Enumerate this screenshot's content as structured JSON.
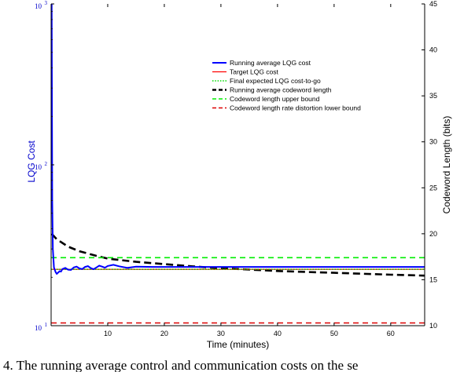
{
  "chart_data": {
    "type": "line",
    "xlabel": "Time (minutes)",
    "ylabel_left": "LQG Cost",
    "ylabel_right": "Codeword Length (bits)",
    "xlim": [
      0,
      66
    ],
    "ylim_left": [
      10,
      1000
    ],
    "yscale_left": "log",
    "ylim_right": [
      10,
      45
    ],
    "x_ticks": [
      10,
      20,
      30,
      40,
      50,
      60
    ],
    "y_left_ticks": [
      {
        "value": 10,
        "base": "10",
        "exp": "1"
      },
      {
        "value": 100,
        "base": "10",
        "exp": "2"
      },
      {
        "value": 1000,
        "base": "10",
        "exp": "3"
      }
    ],
    "y_right_ticks": [
      10,
      15,
      20,
      25,
      30,
      35,
      40,
      45
    ],
    "grid": false,
    "legend_position": "top-right",
    "colors": {
      "avg_lqg": "#0000ff",
      "target_lqg": "#ff0000",
      "final_expected": "#00dd00",
      "avg_codeword": "#000000",
      "upper_bound": "#00ee00",
      "lower_bound": "#dd0000",
      "left_axis_text": "#0000cc"
    },
    "series": [
      {
        "name": "Running average LQG cost",
        "axis": "left",
        "style": "solid-thick",
        "color": "#0000ff",
        "x": [
          0.1,
          0.2,
          0.3,
          0.5,
          0.8,
          1.0,
          1.5,
          2,
          3,
          4,
          5,
          6,
          7,
          8,
          9,
          10,
          12,
          15,
          18,
          20,
          25,
          30,
          35,
          40,
          45,
          50,
          55,
          60,
          66
        ],
        "y": [
          1000,
          60,
          30,
          23,
          21.5,
          21.0,
          21.8,
          22.5,
          22.3,
          23.0,
          22.7,
          23.2,
          22.8,
          23.0,
          23.3,
          23.5,
          23.4,
          23.3,
          23.2,
          23.2,
          23.2,
          23.2,
          23.2,
          23.2,
          23.2,
          23.2,
          23.2,
          23.2,
          23.2
        ]
      },
      {
        "name": "Target LQG cost",
        "axis": "left",
        "style": "solid",
        "color": "#ff0000",
        "x": [
          0,
          66
        ],
        "y": [
          22.4,
          22.4
        ]
      },
      {
        "name": "Final expected LQG cost-to-go",
        "axis": "left",
        "style": "dotted",
        "color": "#00dd00",
        "x": [
          0,
          66
        ],
        "y": [
          22.4,
          22.4
        ]
      },
      {
        "name": "Running average codeword length",
        "axis": "right",
        "style": "dashed-thick",
        "color": "#000000",
        "x": [
          0.1,
          1,
          3,
          5,
          8,
          10,
          12,
          15,
          20,
          25,
          30,
          35,
          40,
          45,
          50,
          55,
          60,
          66
        ],
        "y": [
          20.0,
          19.4,
          18.6,
          18.1,
          17.6,
          17.3,
          17.15,
          16.95,
          16.7,
          16.45,
          16.25,
          16.1,
          15.95,
          15.85,
          15.75,
          15.65,
          15.55,
          15.45
        ]
      },
      {
        "name": "Codeword length upper bound",
        "axis": "right",
        "style": "dashed",
        "color": "#00ee00",
        "x": [
          0,
          66
        ],
        "y": [
          17.4,
          17.4
        ]
      },
      {
        "name": "Codeword length rate distortion lower bound",
        "axis": "right",
        "style": "dashed",
        "color": "#dd0000",
        "x": [
          0,
          66
        ],
        "y": [
          10.3,
          10.3
        ]
      }
    ]
  },
  "caption": "4.    The running average control and communication costs on the se"
}
